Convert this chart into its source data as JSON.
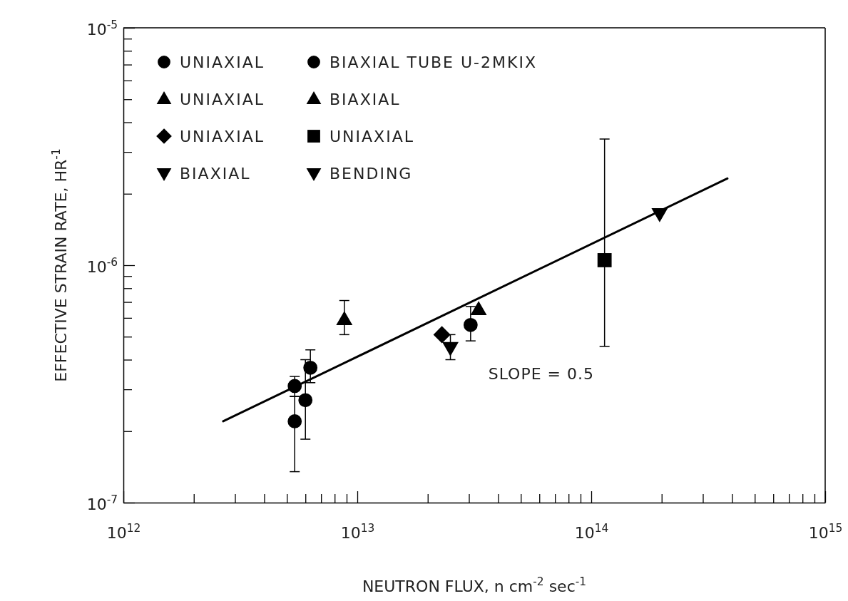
{
  "chart_data": {
    "type": "scatter",
    "xlabel": "NEUTRON FLUX, n cm$^{-2}$ sec$^{-1}$",
    "ylabel": "EFFECTIVE STRAIN RATE, HR$^{-1}$",
    "log": "xy",
    "xlim": [
      1000000000000.0,
      1000000000000000.0
    ],
    "ylim": [
      1e-07,
      1e-05
    ],
    "xticks": [
      {
        "value": 1000000000000.0,
        "label": "10$^{12}$"
      },
      {
        "value": 2000000000000.0,
        "label": null
      },
      {
        "value": 3000000000000.0,
        "label": null
      },
      {
        "value": 4000000000000.0,
        "label": null
      },
      {
        "value": 5000000000000.0,
        "label": null
      },
      {
        "value": 6000000000000.0,
        "label": null
      },
      {
        "value": 7000000000000.0,
        "label": null
      },
      {
        "value": 8000000000000.0,
        "label": null
      },
      {
        "value": 9000000000000.0,
        "label": null
      },
      {
        "value": 10000000000000.0,
        "label": "10$^{13}$"
      },
      {
        "value": 20000000000000.0,
        "label": null
      },
      {
        "value": 30000000000000.0,
        "label": null
      },
      {
        "value": 40000000000000.0,
        "label": null
      },
      {
        "value": 50000000000000.0,
        "label": null
      },
      {
        "value": 60000000000000.0,
        "label": null
      },
      {
        "value": 70000000000000.0,
        "label": null
      },
      {
        "value": 80000000000000.0,
        "label": null
      },
      {
        "value": 90000000000000.0,
        "label": null
      },
      {
        "value": 100000000000000.0,
        "label": "10$^{14}$"
      },
      {
        "value": 200000000000000.0,
        "label": null
      },
      {
        "value": 300000000000000.0,
        "label": null
      },
      {
        "value": 400000000000000.0,
        "label": null
      },
      {
        "value": 500000000000000.0,
        "label": null
      },
      {
        "value": 600000000000000.0,
        "label": null
      },
      {
        "value": 700000000000000.0,
        "label": null
      },
      {
        "value": 800000000000000.0,
        "label": null
      },
      {
        "value": 900000000000000.0,
        "label": null
      },
      {
        "value": 1000000000000000.0,
        "label": "10$^{15}$"
      }
    ],
    "yticks": [
      {
        "value": 1e-07,
        "label": "10$^{-7}$"
      },
      {
        "value": 2e-07,
        "label": null
      },
      {
        "value": 3e-07,
        "label": null
      },
      {
        "value": 4e-07,
        "label": null
      },
      {
        "value": 5e-07,
        "label": null
      },
      {
        "value": 6e-07,
        "label": null
      },
      {
        "value": 7e-07,
        "label": null
      },
      {
        "value": 8e-07,
        "label": null
      },
      {
        "value": 9e-07,
        "label": null
      },
      {
        "value": 1e-06,
        "label": "10$^{-6}$"
      },
      {
        "value": 2e-06,
        "label": null
      },
      {
        "value": 3e-06,
        "label": null
      },
      {
        "value": 4e-06,
        "label": null
      },
      {
        "value": 5e-06,
        "label": null
      },
      {
        "value": 6e-06,
        "label": null
      },
      {
        "value": 7e-06,
        "label": null
      },
      {
        "value": 8e-06,
        "label": null
      },
      {
        "value": 9e-06,
        "label": null
      },
      {
        "value": 1e-05,
        "label": "10$^{-5}$"
      }
    ],
    "grid": false,
    "legend": "top left",
    "series": [
      {
        "name": "UNIAXIAL",
        "color": "#000000",
        "marker": "circle",
        "x": [
          5400000000000.0,
          5400000000000.0,
          6000000000000.0,
          6300000000000.0
        ],
        "values": [
          3.1e-07,
          2.2e-07,
          2.7e-07,
          3.7e-07
        ],
        "errors": [
          [
            2.8e-07,
            3.4e-07
          ],
          [
            1.35e-07,
            2.8e-07
          ],
          [
            1.85e-07,
            4e-07
          ],
          [
            3.2e-07,
            4.4e-07
          ]
        ]
      },
      {
        "name": "BIAXIAL TUBE U-2MKIX",
        "color": "#000000",
        "marker": "circle",
        "x": [
          30500000000000.0
        ],
        "values": [
          5.6e-07
        ],
        "errors": [
          [
            4.8e-07,
            6.7e-07
          ]
        ]
      },
      {
        "name": "UNIAXIAL",
        "color": "#000000",
        "marker": "triangle",
        "x": [
          8800000000000.0
        ],
        "values": [
          5.9e-07
        ],
        "errors": [
          [
            5.1e-07,
            7.1e-07
          ]
        ]
      },
      {
        "name": "BIAXIAL",
        "color": "#000000",
        "marker": "triangle",
        "x": [
          33000000000000.0
        ],
        "values": [
          6.5e-07
        ]
      },
      {
        "name": "UNIAXIAL",
        "color": "#000000",
        "marker": "diamond",
        "x": [
          23000000000000.0
        ],
        "values": [
          5.1e-07
        ]
      },
      {
        "name": "UNIAXIAL",
        "color": "#000000",
        "marker": "square",
        "x": [
          114000000000000.0
        ],
        "values": [
          1.05e-06
        ],
        "errors": [
          [
            4.55e-07,
            3.4e-06
          ]
        ]
      },
      {
        "name": "BIAXIAL",
        "color": "#000000",
        "marker": "triangle-down",
        "x": [
          25000000000000.0
        ],
        "values": [
          4.5e-07
        ],
        "errors": [
          [
            4e-07,
            5.1e-07
          ]
        ]
      },
      {
        "name": "BENDING",
        "color": "#000000",
        "marker": "triangle-down",
        "x": [
          196000000000000.0
        ],
        "values": [
          1.65e-06
        ]
      },
      {
        "type": "line",
        "color": "#000000",
        "marker": "none",
        "line_style": "solid",
        "x": [
          2670000000000.0,
          382000000000000.0
        ],
        "values": [
          2.2e-07,
          2.32e-06
        ]
      }
    ],
    "annotations": [
      "SLOPE = 0.5"
    ]
  }
}
